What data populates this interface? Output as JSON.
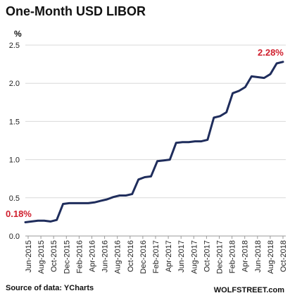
{
  "chart_data": {
    "type": "line",
    "title": "One-Month  USD LIBOR",
    "unit": "%",
    "ylim": [
      0,
      2.5
    ],
    "yticks": [
      "0.0",
      "0.5",
      "1.0",
      "1.5",
      "2.0",
      "2.5"
    ],
    "grid": "horizontal",
    "x_tick_labels": [
      "Jun-2015",
      "Aug-2015",
      "Oct-2015",
      "Dec-2015",
      "Feb-2016",
      "Apr-2016",
      "Jun-2016",
      "Aug-2016",
      "Oct-2016",
      "Dec-2016",
      "Feb-2017",
      "Apr-2017",
      "Jun-2017",
      "Aug-2017",
      "Oct-2017",
      "Dec-2017",
      "Feb-2018",
      "Apr-2018",
      "Jun-2018",
      "Aug-2018",
      "Oct-2018"
    ],
    "x": [
      "2015-06",
      "2015-07",
      "2015-08",
      "2015-09",
      "2015-10",
      "2015-11",
      "2015-12",
      "2016-01",
      "2016-02",
      "2016-03",
      "2016-04",
      "2016-05",
      "2016-06",
      "2016-07",
      "2016-08",
      "2016-09",
      "2016-10",
      "2016-11",
      "2016-12",
      "2017-01",
      "2017-02",
      "2017-03",
      "2017-04",
      "2017-05",
      "2017-06",
      "2017-07",
      "2017-08",
      "2017-09",
      "2017-10",
      "2017-11",
      "2017-12",
      "2018-01",
      "2018-02",
      "2018-03",
      "2018-04",
      "2018-05",
      "2018-06",
      "2018-07",
      "2018-08",
      "2018-09",
      "2018-10",
      "2018-11"
    ],
    "series": [
      {
        "values": [
          0.18,
          0.19,
          0.2,
          0.2,
          0.19,
          0.21,
          0.42,
          0.43,
          0.43,
          0.43,
          0.43,
          0.44,
          0.46,
          0.48,
          0.51,
          0.53,
          0.53,
          0.55,
          0.74,
          0.77,
          0.78,
          0.98,
          0.99,
          1.0,
          1.22,
          1.23,
          1.23,
          1.24,
          1.24,
          1.26,
          1.55,
          1.57,
          1.62,
          1.87,
          1.9,
          1.95,
          2.09,
          2.08,
          2.07,
          2.12,
          2.26,
          2.28
        ],
        "color": "#1f2d5c"
      }
    ],
    "annotations": [
      {
        "text": "0.18%",
        "color": "#d0202e"
      },
      {
        "text": "2.28%",
        "color": "#d0202e"
      }
    ],
    "source": "Source of data: YCharts",
    "brand": "WOLFSTREET.com"
  }
}
